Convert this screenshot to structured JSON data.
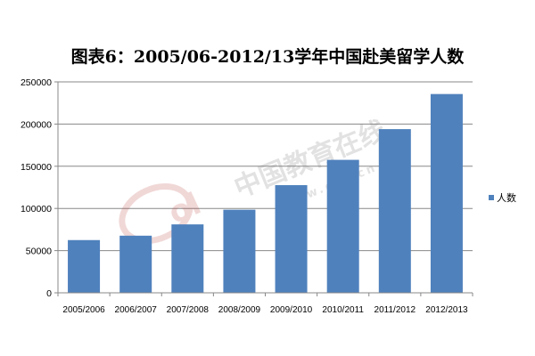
{
  "chart_data": {
    "type": "bar",
    "title": "图表6：2005/06-2012/13学年中国赴美留学人数",
    "xlabel": "",
    "ylabel": "",
    "categories": [
      "2005/2006",
      "2006/2007",
      "2007/2008",
      "2008/2009",
      "2009/2010",
      "2010/2011",
      "2011/2012",
      "2012/2013"
    ],
    "series": [
      {
        "name": "人数",
        "values": [
          62500,
          67700,
          81100,
          98500,
          127600,
          157600,
          194000,
          235600
        ]
      }
    ],
    "ylim": [
      0,
      250000
    ],
    "yticks": [
      0,
      50000,
      100000,
      150000,
      200000,
      250000
    ],
    "grid": true,
    "legend": "right",
    "colors": {
      "bar": "#4f81bd",
      "grid": "#888888",
      "axis": "#888888"
    }
  },
  "watermark": {
    "logo": "eol",
    "text": "中国教育在线",
    "url": "www.eol.cn"
  }
}
